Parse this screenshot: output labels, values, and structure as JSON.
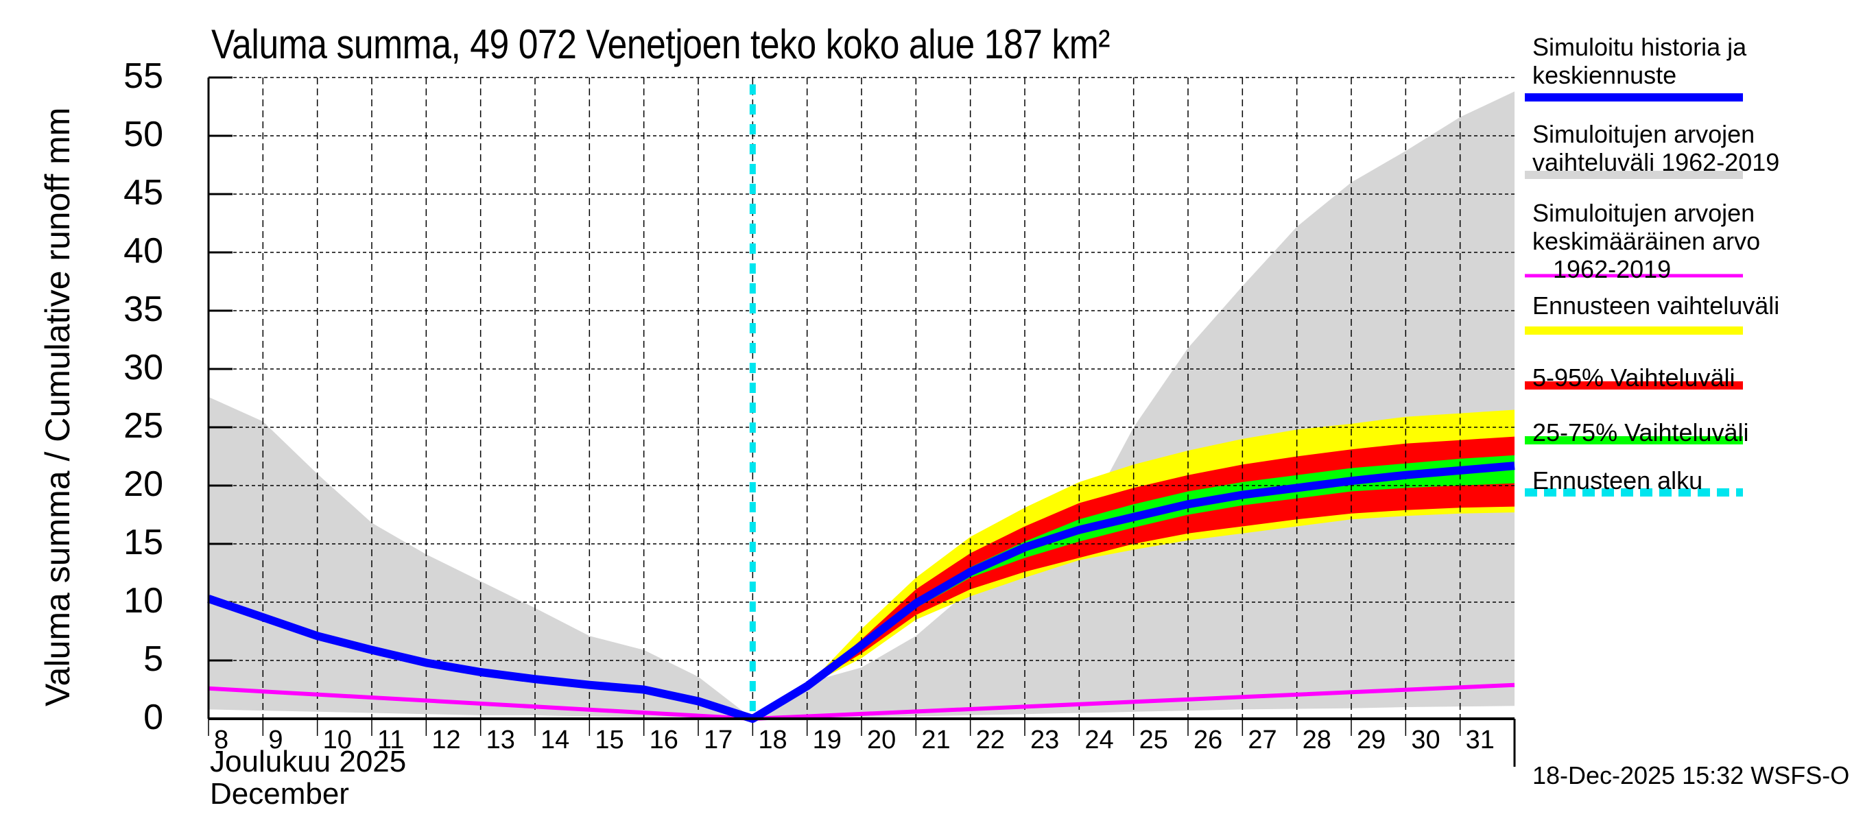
{
  "title": "Valuma summa, 49 072 Venetjoen teko koko alue 187 km²",
  "y_axis_label": "Valuma summa / Cumulative runoff     mm",
  "x_axis_month_fi": "Joulukuu  2025",
  "x_axis_month_en": "December",
  "timestamp": "18-Dec-2025 15:32 WSFS-O",
  "colors": {
    "history": "#0000ff",
    "sim_range": "#d6d6d6",
    "sim_mean": "#ff00ff",
    "forecast_range": "#ffff00",
    "p5_95": "#ff0000",
    "p25_75": "#00ff00",
    "forecast_start": "#00e5ee"
  },
  "legend": [
    {
      "label": "Simuloitu historia ja\nkeskiennuste",
      "color": "#0000ff",
      "style": "solid"
    },
    {
      "label": "Simuloitujen arvojen\nvaihteluväli 1962-2019",
      "color": "#d6d6d6",
      "style": "solid"
    },
    {
      "label": "Simuloitujen arvojen\nkeskimääräinen arvo\n   1962-2019",
      "color": "#ff00ff",
      "style": "thin"
    },
    {
      "label": "Ennusteen vaihteluväli",
      "color": "#ffff00",
      "style": "solid"
    },
    {
      "label": "5-95% Vaihteluväli",
      "color": "#ff0000",
      "style": "solid"
    },
    {
      "label": "25-75% Vaihteluväli",
      "color": "#00ff00",
      "style": "solid"
    },
    {
      "label": "Ennusteen alku",
      "color": "#00e5ee",
      "style": "dashed"
    }
  ],
  "chart_data": {
    "type": "area",
    "title": "Valuma summa, 49 072 Venetjoen teko koko alue 187 km²",
    "xlabel": "Joulukuu 2025 / December",
    "ylabel": "Valuma summa / Cumulative runoff mm",
    "x_unit": "day of December 2025 (32 = Jan 1 00:00)",
    "xlim": [
      8,
      32
    ],
    "ylim": [
      0,
      55
    ],
    "yticks": [
      0,
      5,
      10,
      15,
      20,
      25,
      30,
      35,
      40,
      45,
      50,
      55
    ],
    "xtick_labels": [
      "8",
      "9",
      "10",
      "11",
      "12",
      "13",
      "14",
      "15",
      "16",
      "17",
      "18",
      "19",
      "20",
      "21",
      "22",
      "23",
      "24",
      "25",
      "26",
      "27",
      "28",
      "29",
      "30",
      "31"
    ],
    "grid": true,
    "legend_position": "right",
    "forecast_start_day": 18,
    "sim_range": {
      "name": "Simuloitujen arvojen vaihteluväli 1962-2019",
      "x": [
        8,
        9,
        10,
        11,
        12,
        13,
        14,
        15,
        16,
        17,
        18,
        19,
        20,
        21,
        22,
        23,
        24,
        24.6,
        25,
        26,
        27,
        28,
        29,
        30,
        31,
        32
      ],
      "upper": [
        27.6,
        25.5,
        21.0,
        16.8,
        14.1,
        11.8,
        9.5,
        7.1,
        5.9,
        3.6,
        0,
        3.1,
        4.4,
        7.1,
        11.1,
        13.8,
        16.5,
        21.5,
        25.0,
        31.8,
        37.1,
        42.2,
        46.0,
        48.7,
        51.6,
        53.8
      ],
      "lower": [
        0.8,
        0.7,
        0.6,
        0.5,
        0.4,
        0.3,
        0.3,
        0.2,
        0.1,
        0.05,
        0,
        0.05,
        0.1,
        0.2,
        0.3,
        0.4,
        0.5,
        0.55,
        0.6,
        0.7,
        0.8,
        0.85,
        0.9,
        1.0,
        1.05,
        1.1
      ]
    },
    "forecast_bands": {
      "x": [
        18,
        19,
        20,
        21,
        22,
        23,
        24,
        25,
        26,
        27,
        28,
        29,
        30,
        31,
        32
      ],
      "range_upper": [
        0,
        2.8,
        7.7,
        12.1,
        15.6,
        18.1,
        20.3,
        21.8,
        23.0,
        24.0,
        24.8,
        25.3,
        25.9,
        26.2,
        26.5
      ],
      "p95": [
        0,
        2.8,
        6.8,
        11.1,
        14.2,
        16.5,
        18.5,
        19.8,
        20.9,
        21.8,
        22.5,
        23.1,
        23.6,
        23.9,
        24.2
      ],
      "p75": [
        0,
        2.8,
        6.4,
        10.2,
        13.0,
        15.2,
        17.1,
        18.4,
        19.5,
        20.3,
        20.9,
        21.5,
        21.9,
        22.3,
        22.6
      ],
      "p25": [
        0,
        2.8,
        6.0,
        9.5,
        12.1,
        13.8,
        15.2,
        16.4,
        17.5,
        18.3,
        18.9,
        19.5,
        19.8,
        20.0,
        20.2
      ],
      "p5": [
        0,
        2.8,
        5.6,
        8.9,
        11.1,
        12.6,
        13.8,
        15.0,
        15.9,
        16.5,
        17.1,
        17.6,
        17.9,
        18.1,
        18.2
      ],
      "range_lower": [
        0,
        2.8,
        5.2,
        8.5,
        10.5,
        12.1,
        13.6,
        14.5,
        15.3,
        15.9,
        16.5,
        17.1,
        17.4,
        17.6,
        17.7
      ]
    },
    "series": [
      {
        "name": "Simuloitu historia ja keskiennuste",
        "x": [
          8,
          9,
          10,
          11,
          12,
          13,
          14,
          15,
          16,
          17,
          18,
          19,
          20,
          21,
          22,
          23,
          24,
          25,
          26,
          27,
          28,
          29,
          30,
          31,
          32
        ],
        "values": [
          10.3,
          8.7,
          7.1,
          5.9,
          4.8,
          4.0,
          3.4,
          2.9,
          2.5,
          1.5,
          0,
          2.8,
          6.3,
          9.9,
          12.6,
          14.7,
          16.2,
          17.3,
          18.4,
          19.2,
          19.8,
          20.4,
          20.9,
          21.3,
          21.7
        ]
      },
      {
        "name": "Simuloitujen arvojen keskimääräinen arvo 1962-2019",
        "x": [
          8,
          18,
          32
        ],
        "values": [
          2.6,
          0,
          2.9
        ]
      }
    ]
  }
}
